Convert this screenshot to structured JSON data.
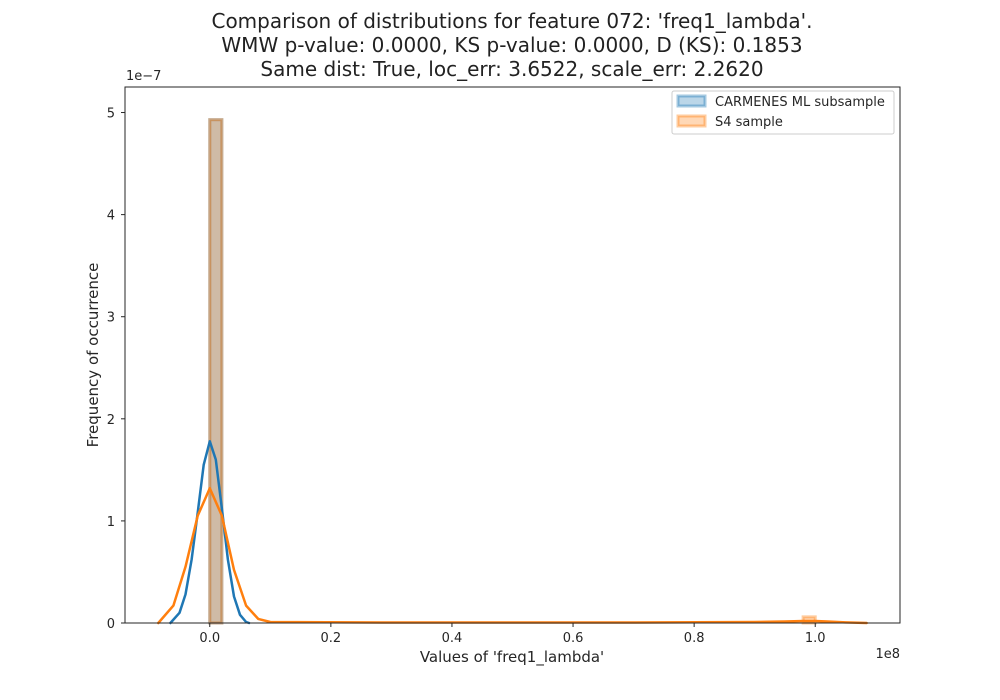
{
  "chart_data": {
    "type": "histogram+kde",
    "title_lines": [
      "Comparison of distributions for feature 072: 'freq1_lambda'.",
      "WMW p-value: 0.0000, KS p-value: 0.0000, D (KS): 0.1853",
      "Same dist: True, loc_err: 3.6522, scale_err: 2.2620"
    ],
    "xlabel": "Values of 'freq1_lambda'",
    "ylabel": "Frequency of occurrence",
    "x_offset_label": "1e8",
    "y_offset_label": "1e−7",
    "xlim": [
      -0.14,
      1.14
    ],
    "ylim": [
      0,
      5.25
    ],
    "x_unit_scale": 100000000.0,
    "y_unit_scale": 1e-07,
    "xticks": [
      0.0,
      0.2,
      0.4,
      0.6,
      0.8,
      1.0
    ],
    "xtick_labels": [
      "0.0",
      "0.2",
      "0.4",
      "0.6",
      "0.8",
      "1.0"
    ],
    "yticks": [
      0,
      1,
      2,
      3,
      4,
      5
    ],
    "ytick_labels": [
      "0",
      "1",
      "2",
      "3",
      "4",
      "5"
    ],
    "grid": false,
    "legend_position": "top-right",
    "series": [
      {
        "name": "CARMENES ML subsample",
        "color": "#1f77b4",
        "hist_bins": [
          {
            "x0": 0.0,
            "x1": 0.02,
            "height": 4.93
          }
        ],
        "kde": {
          "x": [
            -0.065,
            -0.05,
            -0.04,
            -0.03,
            -0.02,
            -0.01,
            0.0,
            0.01,
            0.02,
            0.03,
            0.04,
            0.05,
            0.06,
            0.065
          ],
          "y": [
            0.0,
            0.1,
            0.28,
            0.62,
            1.08,
            1.55,
            1.78,
            1.6,
            1.12,
            0.62,
            0.26,
            0.08,
            0.01,
            0.0
          ]
        }
      },
      {
        "name": "S4 sample",
        "color": "#ff7f0e",
        "hist_bins": [
          {
            "x0": 0.0,
            "x1": 0.02,
            "height": 4.93
          },
          {
            "x0": 0.98,
            "x1": 1.0,
            "height": 0.06
          }
        ],
        "kde": {
          "x": [
            -0.085,
            -0.06,
            -0.04,
            -0.02,
            0.0,
            0.02,
            0.04,
            0.06,
            0.08,
            0.1,
            0.3,
            0.5,
            0.7,
            0.9,
            0.95,
            0.98,
            1.0,
            1.02,
            1.05,
            1.085
          ],
          "y": [
            0.0,
            0.17,
            0.55,
            1.05,
            1.32,
            1.05,
            0.52,
            0.17,
            0.04,
            0.01,
            0.005,
            0.005,
            0.005,
            0.01,
            0.015,
            0.02,
            0.02,
            0.015,
            0.006,
            0.0
          ]
        }
      }
    ]
  }
}
